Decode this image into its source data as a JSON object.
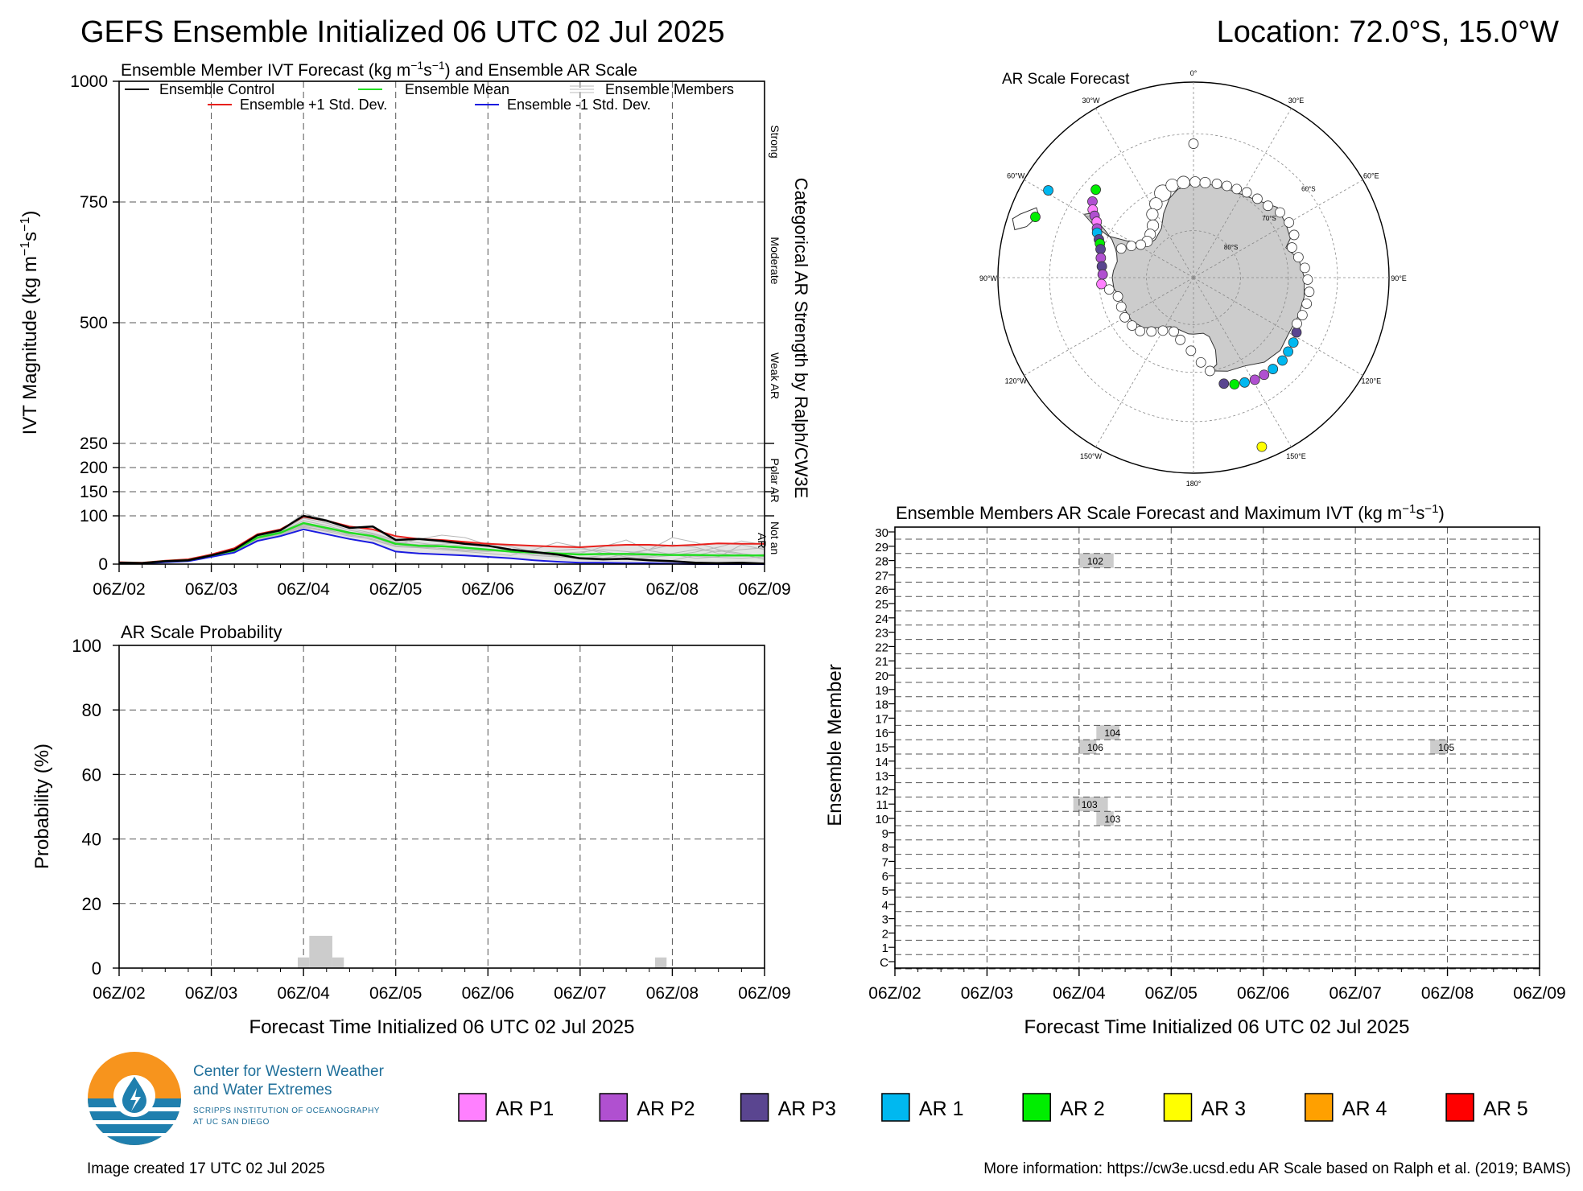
{
  "header": {
    "title": "GEFS Ensemble Initialized 06 UTC 02 Jul 2025",
    "location": "Location: 72.0°S, 15.0°W"
  },
  "colors": {
    "control": "#000000",
    "mean": "#22dd22",
    "plus_std": "#e8201c",
    "minus_std": "#1a1ae0",
    "members": "#b8b8b8",
    "ar_p1": "#ff80ff",
    "ar_p2": "#b050d0",
    "ar_p3": "#5a4590",
    "ar_1": "#00b8f0",
    "ar_2": "#00ee00",
    "ar_3": "#ffff00",
    "ar_4": "#ffa000",
    "ar_5": "#ff0000"
  },
  "chart_data": [
    {
      "type": "line",
      "title": "Ensemble Member IVT Forecast (kg m⁻¹s⁻¹) and Ensemble AR Scale",
      "ylabel": "IVT Magnitude (kg m⁻¹s⁻¹)",
      "y_ticks": [
        "0",
        "100",
        "150",
        "200",
        "250",
        "500",
        "750",
        "1000"
      ],
      "x_ticks": [
        "06Z/02",
        "06Z/03",
        "06Z/04",
        "06Z/05",
        "06Z/06",
        "06Z/07",
        "06Z/08",
        "06Z/09"
      ],
      "right_axis_title": "Categorical AR Strength by Ralph/CW3E",
      "right_axis_categories": [
        "Strong",
        "Moderate",
        "Weak AR",
        "Polar AR",
        "Not an AR"
      ],
      "legend": {
        "control": "Ensemble Control",
        "mean": "Ensemble Mean",
        "members": "Ensemble Members",
        "plus_std": "Ensemble +1 Std. Dev.",
        "minus_std": "Ensemble -1 Std. Dev."
      },
      "x_days": [
        0,
        0.25,
        0.5,
        0.75,
        1.0,
        1.25,
        1.5,
        1.75,
        2.0,
        2.25,
        2.5,
        2.75,
        3.0,
        3.25,
        3.5,
        3.75,
        4.0,
        4.25,
        4.5,
        4.75,
        5.0,
        5.25,
        5.5,
        5.75,
        6.0,
        6.25,
        6.5,
        6.75,
        7.0
      ],
      "series": {
        "control": [
          3,
          2,
          6,
          8,
          18,
          30,
          60,
          70,
          100,
          90,
          75,
          78,
          50,
          52,
          48,
          42,
          38,
          30,
          25,
          20,
          12,
          10,
          11,
          8,
          6,
          3,
          2,
          3,
          1
        ],
        "mean": [
          3,
          2,
          6,
          8,
          18,
          28,
          55,
          65,
          85,
          75,
          65,
          58,
          42,
          38,
          37,
          34,
          30,
          26,
          24,
          22,
          20,
          21,
          21,
          20,
          19,
          19,
          18,
          18,
          18
        ],
        "plus_std": [
          4,
          3,
          7,
          10,
          20,
          33,
          62,
          72,
          98,
          90,
          78,
          72,
          58,
          52,
          50,
          46,
          42,
          40,
          38,
          36,
          35,
          38,
          40,
          40,
          38,
          40,
          43,
          42,
          42
        ],
        "minus_std": [
          2,
          1,
          4,
          6,
          15,
          24,
          48,
          58,
          72,
          62,
          52,
          44,
          26,
          22,
          20,
          18,
          15,
          12,
          8,
          5,
          3,
          3,
          2,
          2,
          1,
          0,
          0,
          0,
          0
        ],
        "members": [
          [
            3,
            2,
            5,
            9,
            17,
            27,
            53,
            66,
            90,
            80,
            66,
            60,
            45,
            40,
            41,
            45,
            38,
            28,
            20,
            18,
            22,
            36,
            50,
            28,
            20,
            12,
            15,
            40,
            30
          ],
          [
            3,
            2,
            6,
            8,
            19,
            29,
            57,
            64,
            82,
            72,
            60,
            55,
            40,
            52,
            60,
            55,
            40,
            24,
            18,
            15,
            12,
            18,
            22,
            30,
            40,
            35,
            22,
            18,
            20
          ],
          [
            2,
            2,
            6,
            7,
            18,
            28,
            52,
            62,
            78,
            70,
            62,
            50,
            36,
            34,
            30,
            26,
            22,
            18,
            30,
            45,
            35,
            22,
            15,
            10,
            8,
            18,
            28,
            20,
            10
          ],
          [
            3,
            3,
            7,
            9,
            17,
            30,
            58,
            68,
            95,
            85,
            70,
            62,
            48,
            38,
            32,
            28,
            26,
            30,
            28,
            20,
            14,
            12,
            20,
            30,
            55,
            45,
            30,
            22,
            16
          ],
          [
            4,
            2,
            5,
            8,
            18,
            27,
            54,
            63,
            80,
            74,
            64,
            58,
            44,
            40,
            36,
            40,
            44,
            36,
            25,
            16,
            10,
            8,
            12,
            14,
            18,
            25,
            35,
            48,
            40
          ],
          [
            3,
            2,
            6,
            8,
            16,
            26,
            50,
            60,
            76,
            68,
            58,
            52,
            38,
            35,
            33,
            30,
            28,
            25,
            22,
            28,
            32,
            26,
            18,
            16,
            22,
            30,
            26,
            30,
            34
          ],
          [
            3,
            2,
            6,
            9,
            19,
            31,
            60,
            70,
            105,
            92,
            74,
            64,
            50,
            44,
            38,
            34,
            30,
            26,
            24,
            22,
            25,
            30,
            26,
            22,
            20,
            16,
            14,
            12,
            15
          ]
        ]
      }
    },
    {
      "type": "bar",
      "title": "AR Scale Probability",
      "ylabel": "Probability (%)",
      "xlabel": "Forecast Time Initialized 06 UTC 02 Jul 2025",
      "ylim": [
        0,
        100
      ],
      "y_ticks": [
        "0",
        "20",
        "40",
        "60",
        "80",
        "100"
      ],
      "x_ticks": [
        "06Z/02",
        "06Z/03",
        "06Z/04",
        "06Z/05",
        "06Z/06",
        "06Z/07",
        "06Z/08",
        "06Z/09"
      ],
      "bars": [
        {
          "x_start": 1.9375,
          "x_end": 2.0625,
          "value": 3.3
        },
        {
          "x_start": 2.0625,
          "x_end": 2.3125,
          "value": 10
        },
        {
          "x_start": 2.3125,
          "x_end": 2.4375,
          "value": 3.3
        },
        {
          "x_start": 5.8125,
          "x_end": 5.9375,
          "value": 3.3
        }
      ]
    },
    {
      "type": "scatter",
      "title": "AR Scale Forecast",
      "projection": "south-polar-stereographic",
      "longitude_labels": [
        "0°",
        "30°E",
        "60°E",
        "90°E",
        "120°E",
        "150°E",
        "180°",
        "150°W",
        "120°W",
        "90°W",
        "60°W",
        "30°W"
      ],
      "latitude_labels": [
        "60°S",
        "70°S",
        "80°S"
      ],
      "points": [
        {
          "lon": 0,
          "lat": -62,
          "cat": "none",
          "size": 1.0
        },
        {
          "lon": -59,
          "lat": -55,
          "cat": "ar_1",
          "size": 1.0
        },
        {
          "lon": -69,
          "lat": -55,
          "cat": "ar_2",
          "size": 1.0
        },
        {
          "lon": -48,
          "lat": -62.5,
          "cat": "ar_2",
          "size": 1.0
        },
        {
          "lon": -53,
          "lat": -63.5,
          "cat": "ar_p2",
          "size": 1.0
        },
        {
          "lon": -56,
          "lat": -64.5,
          "cat": "ar_p1",
          "size": 1.0
        },
        {
          "lon": -58,
          "lat": -65.5,
          "cat": "ar_p2",
          "size": 1.0
        },
        {
          "lon": -60,
          "lat": -66.5,
          "cat": "ar_p1",
          "size": 1.0
        },
        {
          "lon": -63,
          "lat": -67.2,
          "cat": "ar_p2",
          "size": 1.0
        },
        {
          "lon": -65,
          "lat": -67.6,
          "cat": "ar_1",
          "size": 1.0
        },
        {
          "lon": -68,
          "lat": -68.5,
          "cat": "ar_p3",
          "size": 1.0
        },
        {
          "lon": -70,
          "lat": -69.0,
          "cat": "ar_2",
          "size": 1.0
        },
        {
          "lon": -73,
          "lat": -69.5,
          "cat": "ar_p3",
          "size": 1.0
        },
        {
          "lon": -78,
          "lat": -70.0,
          "cat": "ar_p2",
          "size": 1.0
        },
        {
          "lon": -83,
          "lat": -70.5,
          "cat": "ar_p3",
          "size": 1.0
        },
        {
          "lon": -88,
          "lat": -70.8,
          "cat": "ar_p2",
          "size": 1.0
        },
        {
          "lon": -94,
          "lat": -70.5,
          "cat": "ar_p1",
          "size": 1.0
        },
        {
          "lon": 118,
          "lat": -65.5,
          "cat": "ar_p3",
          "size": 1.0
        },
        {
          "lon": 123,
          "lat": -65.0,
          "cat": "ar_1",
          "size": 1.0
        },
        {
          "lon": 128,
          "lat": -64.8,
          "cat": "ar_1",
          "size": 1.0
        },
        {
          "lon": 133,
          "lat": -64.5,
          "cat": "ar_1",
          "size": 1.0
        },
        {
          "lon": 139,
          "lat": -64.6,
          "cat": "ar_1",
          "size": 1.0
        },
        {
          "lon": 144,
          "lat": -64.8,
          "cat": "ar_p2",
          "size": 1.0
        },
        {
          "lon": 149,
          "lat": -65.0,
          "cat": "ar_p2",
          "size": 1.0
        },
        {
          "lon": 154,
          "lat": -65.5,
          "cat": "ar_1",
          "size": 1.0
        },
        {
          "lon": 159,
          "lat": -66.0,
          "cat": "ar_2",
          "size": 1.0
        },
        {
          "lon": 164,
          "lat": -66.8,
          "cat": "ar_p3",
          "size": 1.0
        },
        {
          "lon": 158,
          "lat": -52.5,
          "cat": "ar_3",
          "size": 1.0
        },
        {
          "lon": -20,
          "lat": -71.0,
          "cat": "none",
          "size": 1.7
        },
        {
          "lon": -13,
          "lat": -70.0,
          "cat": "none",
          "size": 1.3
        },
        {
          "lon": -6,
          "lat": -69.8,
          "cat": "none",
          "size": 1.3
        },
        {
          "lon": 1,
          "lat": -69.8,
          "cat": "none",
          "size": 1.1
        },
        {
          "lon": 7,
          "lat": -69.8,
          "cat": "none",
          "size": 1.1
        },
        {
          "lon": 14,
          "lat": -69.6,
          "cat": "none",
          "size": 1.0
        },
        {
          "lon": 20,
          "lat": -69.4,
          "cat": "none",
          "size": 1.0
        },
        {
          "lon": 26,
          "lat": -69.2,
          "cat": "none",
          "size": 1.0
        },
        {
          "lon": -27,
          "lat": -72.5,
          "cat": "none",
          "size": 1.3
        },
        {
          "lon": -33,
          "lat": -74.0,
          "cat": "none",
          "size": 1.2
        },
        {
          "lon": -38,
          "lat": -76.0,
          "cat": "none",
          "size": 1.2
        },
        {
          "lon": -45,
          "lat": -77.0,
          "cat": "none",
          "size": 1.1
        },
        {
          "lon": -52,
          "lat": -77.5,
          "cat": "none",
          "size": 1.1
        },
        {
          "lon": -58,
          "lat": -76.8,
          "cat": "none",
          "size": 1.0
        },
        {
          "lon": -63,
          "lat": -75.2,
          "cat": "none",
          "size": 1.0
        },
        {
          "lon": -68,
          "lat": -73.5,
          "cat": "none",
          "size": 1.0
        },
        {
          "lon": 32,
          "lat": -68.8,
          "cat": "none",
          "size": 1.0
        },
        {
          "lon": 39,
          "lat": -68.6,
          "cat": "none",
          "size": 1.0
        },
        {
          "lon": 46,
          "lat": -68.2,
          "cat": "none",
          "size": 1.0
        },
        {
          "lon": 53,
          "lat": -67.2,
          "cat": "none",
          "size": 1.0
        },
        {
          "lon": 60,
          "lat": -66.8,
          "cat": "none",
          "size": 1.0
        },
        {
          "lon": 67,
          "lat": -67.0,
          "cat": "none",
          "size": 1.0
        },
        {
          "lon": 73,
          "lat": -68.3,
          "cat": "none",
          "size": 1.0
        },
        {
          "lon": 79,
          "lat": -67.5,
          "cat": "none",
          "size": 1.0
        },
        {
          "lon": 85,
          "lat": -66.5,
          "cat": "none",
          "size": 1.0
        },
        {
          "lon": 91,
          "lat": -66.0,
          "cat": "none",
          "size": 1.0
        },
        {
          "lon": 97,
          "lat": -65.5,
          "cat": "none",
          "size": 1.0
        },
        {
          "lon": 103,
          "lat": -65.6,
          "cat": "none",
          "size": 1.0
        },
        {
          "lon": 109,
          "lat": -65.8,
          "cat": "none",
          "size": 1.0
        },
        {
          "lon": 114,
          "lat": -66.2,
          "cat": "none",
          "size": 1.0
        },
        {
          "lon": 170,
          "lat": -70.0,
          "cat": "none",
          "size": 1.0
        },
        {
          "lon": 175,
          "lat": -72.0,
          "cat": "none",
          "size": 1.0
        },
        {
          "lon": -178,
          "lat": -74.5,
          "cat": "none",
          "size": 1.0
        },
        {
          "lon": -168,
          "lat": -76.5,
          "cat": "none",
          "size": 1.0
        },
        {
          "lon": -160,
          "lat": -77.8,
          "cat": "none",
          "size": 1.0
        },
        {
          "lon": -150,
          "lat": -77.0,
          "cat": "none",
          "size": 1.0
        },
        {
          "lon": -142,
          "lat": -75.5,
          "cat": "none",
          "size": 1.0
        },
        {
          "lon": -135,
          "lat": -74.0,
          "cat": "none",
          "size": 1.0
        },
        {
          "lon": -128,
          "lat": -73.5,
          "cat": "none",
          "size": 1.0
        },
        {
          "lon": -120,
          "lat": -73.2,
          "cat": "none",
          "size": 1.0
        },
        {
          "lon": -112,
          "lat": -73.5,
          "cat": "none",
          "size": 1.0
        },
        {
          "lon": -104,
          "lat": -73.5,
          "cat": "none",
          "size": 1.0
        },
        {
          "lon": -98,
          "lat": -72.0,
          "cat": "none",
          "size": 1.0
        }
      ]
    },
    {
      "type": "heatmap",
      "title": "Ensemble Members AR Scale Forecast and Maximum IVT (kg m⁻¹s⁻¹)",
      "ylabel": "Ensemble Member",
      "xlabel": "Forecast Time Initialized 06 UTC 02 Jul 2025",
      "members": [
        "C",
        "1",
        "2",
        "3",
        "4",
        "5",
        "6",
        "7",
        "8",
        "9",
        "10",
        "11",
        "12",
        "13",
        "14",
        "15",
        "16",
        "17",
        "18",
        "19",
        "20",
        "21",
        "22",
        "23",
        "24",
        "25",
        "26",
        "27",
        "28",
        "29",
        "30"
      ],
      "x_ticks": [
        "06Z/02",
        "06Z/03",
        "06Z/04",
        "06Z/05",
        "06Z/06",
        "06Z/07",
        "06Z/08",
        "06Z/09"
      ],
      "cells": [
        {
          "member": "28",
          "x_start": 2.0,
          "x_end": 2.375,
          "label": "102"
        },
        {
          "member": "16",
          "x_start": 2.1875,
          "x_end": 2.4375,
          "label": "104"
        },
        {
          "member": "15",
          "x_start": 2.0,
          "x_end": 2.1875,
          "label": "106"
        },
        {
          "member": "15",
          "x_start": 5.8125,
          "x_end": 6.0,
          "label": "105"
        },
        {
          "member": "11",
          "x_start": 1.9375,
          "x_end": 2.3125,
          "label": "103"
        },
        {
          "member": "10",
          "x_start": 2.1875,
          "x_end": 2.375,
          "label": "103"
        }
      ]
    }
  ],
  "legend_bottom": [
    {
      "label": "AR P1",
      "color_key": "ar_p1"
    },
    {
      "label": "AR P2",
      "color_key": "ar_p2"
    },
    {
      "label": "AR P3",
      "color_key": "ar_p3"
    },
    {
      "label": "AR 1",
      "color_key": "ar_1"
    },
    {
      "label": "AR 2",
      "color_key": "ar_2"
    },
    {
      "label": "AR 3",
      "color_key": "ar_3"
    },
    {
      "label": "AR 4",
      "color_key": "ar_4"
    },
    {
      "label": "AR 5",
      "color_key": "ar_5"
    }
  ],
  "footer": {
    "org_name_line1": "Center for Western Weather",
    "org_name_line2": "and Water Extremes",
    "org_sub_line1": "SCRIPPS INSTITUTION OF OCEANOGRAPHY",
    "org_sub_line2": "AT UC SAN DIEGO",
    "created": "Image created 17 UTC 02 Jul 2025",
    "info": "More information: https://cw3e.ucsd.edu AR Scale based on Ralph et al. (2019; BAMS)"
  }
}
